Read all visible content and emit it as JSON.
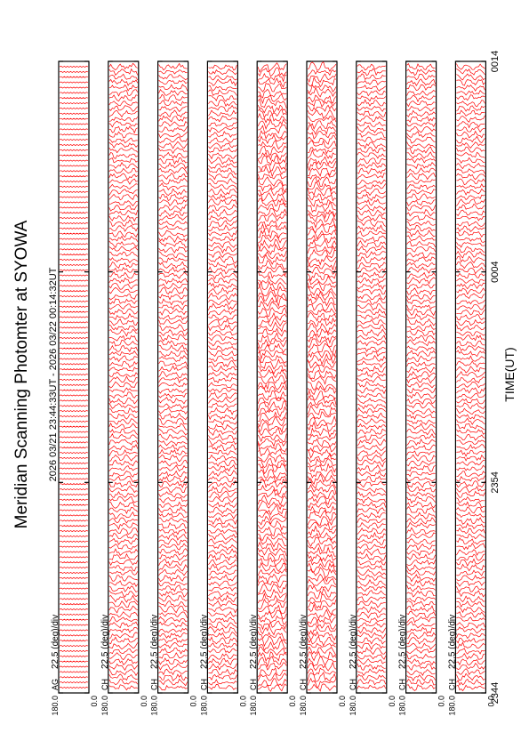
{
  "chart_data": {
    "type": "line",
    "title": "Meridian Scanning Photomter at SYOWA",
    "subtitle": "2026 03/21 23:44:33UT - 2026 03/22 00:14:32UT",
    "xlabel": "TIME(UT)",
    "x_ticks": [
      "2344",
      "2354",
      "0004",
      "0014"
    ],
    "x_range_minutes": [
      0,
      30
    ],
    "y_top_label": "180.0",
    "y_bottom_label": "0.0",
    "scale_label": "22.5 (deg)/div",
    "trace_color": "#ff0000",
    "frame_color": "#000000",
    "panels": [
      {
        "channel_label": "AG"
      },
      {
        "channel_label": "CH"
      },
      {
        "channel_label": "CH"
      },
      {
        "channel_label": "CH"
      },
      {
        "channel_label": "CH"
      },
      {
        "channel_label": "CH"
      },
      {
        "channel_label": "CH"
      },
      {
        "channel_label": "CH"
      },
      {
        "channel_label": "CH"
      }
    ]
  }
}
